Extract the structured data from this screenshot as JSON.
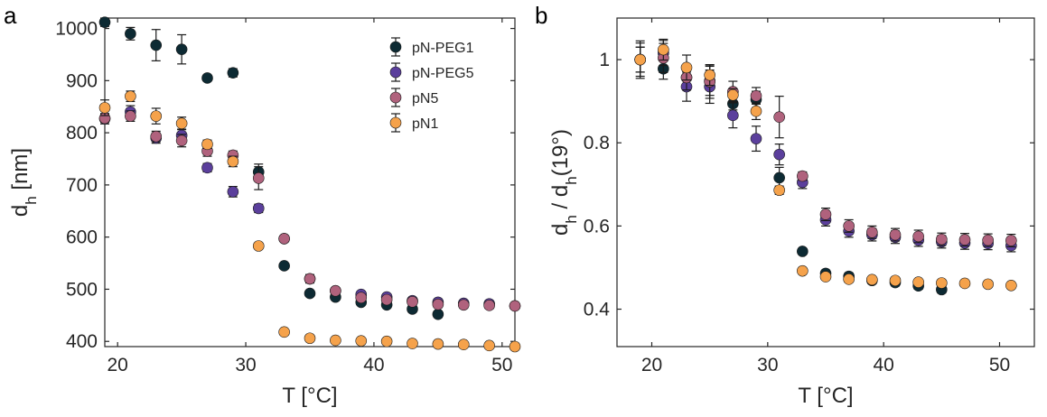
{
  "panels": {
    "a": "a",
    "b": "b"
  },
  "chart_data": [
    {
      "type": "scatter",
      "panel": "a",
      "xlabel": "T [°C]",
      "ylabel": "d_h [nm]",
      "ylabel_main": "d",
      "ylabel_sub": "h",
      "ylabel_rest": " [nm]",
      "xlim": [
        19,
        51
      ],
      "ylim": [
        390,
        1020
      ],
      "xticks": [
        20,
        30,
        40,
        50
      ],
      "yticks": [
        400,
        500,
        600,
        700,
        800,
        900,
        1000
      ],
      "legend_position": "top-right",
      "series": [
        {
          "name": "pN-PEG1",
          "color": "#0d2a33",
          "x": [
            19,
            21,
            23,
            25,
            27,
            29,
            31,
            33,
            35,
            37,
            39,
            41,
            43,
            45
          ],
          "y": [
            1012,
            990,
            968,
            960,
            905,
            915,
            725,
            545,
            492,
            485,
            475,
            470,
            462,
            452
          ],
          "err": [
            8,
            12,
            30,
            28,
            6,
            8,
            15,
            5,
            4,
            5,
            5,
            5,
            6,
            6
          ]
        },
        {
          "name": "pN-PEG5",
          "color": "#5b3f9c",
          "x": [
            19,
            21,
            23,
            25,
            27,
            29,
            31,
            33,
            35,
            37,
            39,
            41,
            43,
            45,
            47,
            49,
            51
          ],
          "y": [
            827,
            840,
            790,
            795,
            733,
            687,
            655,
            597,
            520,
            497,
            490,
            485,
            478,
            475,
            473,
            472,
            468
          ],
          "err": [
            10,
            12,
            10,
            12,
            8,
            10,
            8,
            6,
            8,
            6,
            6,
            6,
            6,
            6,
            6,
            6,
            6
          ]
        },
        {
          "name": "pN5",
          "color": "#b0627d",
          "x": [
            19,
            21,
            23,
            25,
            27,
            29,
            31,
            33,
            35,
            37,
            39,
            41,
            43,
            45,
            47,
            49,
            51
          ],
          "y": [
            828,
            832,
            793,
            785,
            765,
            757,
            713,
            597,
            520,
            497,
            484,
            480,
            476,
            471,
            470,
            469,
            468
          ],
          "err": [
            8,
            10,
            10,
            12,
            10,
            8,
            22,
            5,
            8,
            6,
            6,
            6,
            6,
            6,
            6,
            6,
            6
          ]
        },
        {
          "name": "pN1",
          "color": "#f5a24b",
          "x": [
            19,
            21,
            23,
            25,
            27,
            29,
            31,
            33,
            35,
            37,
            39,
            41,
            43,
            45,
            47,
            49,
            51
          ],
          "y": [
            848,
            870,
            832,
            818,
            778,
            745,
            583,
            418,
            406,
            402,
            401,
            400,
            396,
            395,
            394,
            392,
            390
          ],
          "err": [
            15,
            10,
            15,
            12,
            8,
            10,
            5,
            4,
            4,
            4,
            4,
            4,
            4,
            4,
            4,
            4,
            4
          ]
        }
      ]
    },
    {
      "type": "scatter",
      "panel": "b",
      "xlabel": "T [°C]",
      "ylabel": "d_h / d_h(19°)",
      "ylabel_part1": "d",
      "ylabel_sub1": "h",
      "ylabel_mid": " / d",
      "ylabel_sub2": "h",
      "ylabel_end": "(19°)",
      "xlim": [
        17,
        53
      ],
      "ylim": [
        0.31,
        1.1
      ],
      "xticks": [
        20,
        30,
        40,
        50
      ],
      "yticks": [
        0.4,
        0.6,
        0.8,
        1
      ],
      "ytick_labels": [
        "0.4",
        "0.6",
        "0.8",
        "1"
      ],
      "series": [
        {
          "name": "pN-PEG1",
          "color": "#0d2a33",
          "x": [
            19,
            21,
            23,
            25,
            27,
            29,
            31,
            33,
            35,
            37,
            39,
            41,
            43,
            45
          ],
          "y": [
            1.0,
            0.978,
            0.957,
            0.949,
            0.894,
            0.904,
            0.716,
            0.539,
            0.486,
            0.479,
            0.469,
            0.464,
            0.456,
            0.447
          ],
          "err": [
            0.03,
            0.025,
            0.03,
            0.035,
            0.015,
            0.02,
            0.025,
            0.006,
            0.008,
            0.008,
            0.008,
            0.008,
            0.008,
            0.008
          ]
        },
        {
          "name": "pN-PEG5",
          "color": "#5b3f9c",
          "x": [
            19,
            21,
            23,
            25,
            27,
            29,
            31,
            33,
            35,
            37,
            39,
            41,
            43,
            45,
            47,
            49,
            51
          ],
          "y": [
            1.0,
            1.016,
            0.935,
            0.935,
            0.866,
            0.81,
            0.772,
            0.705,
            0.615,
            0.588,
            0.579,
            0.573,
            0.566,
            0.562,
            0.559,
            0.558,
            0.553
          ],
          "err": [
            0.04,
            0.03,
            0.035,
            0.04,
            0.03,
            0.03,
            0.025,
            0.015,
            0.015,
            0.015,
            0.015,
            0.015,
            0.015,
            0.015,
            0.015,
            0.015,
            0.015
          ]
        },
        {
          "name": "pN5",
          "color": "#b0627d",
          "x": [
            19,
            21,
            23,
            25,
            27,
            29,
            31,
            33,
            35,
            37,
            39,
            41,
            43,
            45,
            47,
            49,
            51
          ],
          "y": [
            1.0,
            1.004,
            0.957,
            0.947,
            0.923,
            0.913,
            0.862,
            0.72,
            0.628,
            0.6,
            0.585,
            0.579,
            0.575,
            0.568,
            0.567,
            0.566,
            0.565
          ],
          "err": [
            0.03,
            0.035,
            0.03,
            0.04,
            0.025,
            0.02,
            0.05,
            0.01,
            0.015,
            0.015,
            0.015,
            0.015,
            0.015,
            0.015,
            0.015,
            0.015,
            0.015
          ]
        },
        {
          "name": "pN1",
          "color": "#f5a24b",
          "x": [
            19,
            21,
            23,
            25,
            27,
            29,
            31,
            33,
            35,
            37,
            39,
            41,
            43,
            45,
            47,
            49,
            51
          ],
          "y": [
            1.0,
            1.024,
            0.981,
            0.963,
            0.915,
            0.876,
            0.686,
            0.492,
            0.478,
            0.472,
            0.471,
            0.469,
            0.465,
            0.463,
            0.462,
            0.46,
            0.457
          ],
          "err": [
            0.045,
            0.025,
            0.03,
            0.025,
            0.015,
            0.02,
            0.01,
            0.006,
            0.006,
            0.006,
            0.006,
            0.006,
            0.006,
            0.006,
            0.006,
            0.006,
            0.006
          ]
        }
      ]
    }
  ]
}
